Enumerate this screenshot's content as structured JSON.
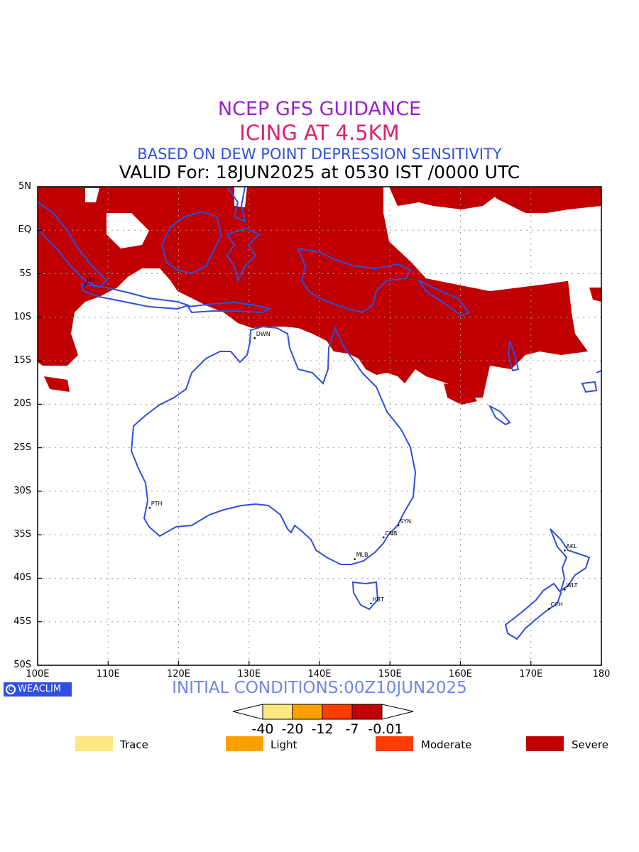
{
  "titles": {
    "line1": "NCEP GFS GUIDANCE",
    "line2": "ICING AT 4.5KM",
    "line3": "BASED ON DEW POINT DEPRESSION SENSITIVITY",
    "line4": "VALID For: 18JUN2025 at 0530 IST /0000 UTC"
  },
  "map": {
    "lat_labels": [
      "5N",
      "EQ",
      "5S",
      "10S",
      "15S",
      "20S",
      "25S",
      "30S",
      "35S",
      "40S",
      "45S",
      "50S"
    ],
    "lon_labels": [
      "100E",
      "110E",
      "120E",
      "130E",
      "140E",
      "150E",
      "160E",
      "170E",
      "180"
    ],
    "cities": [
      {
        "name": "JKT",
        "lon": 106.8,
        "lat": -6.2
      },
      {
        "name": "DWN",
        "lon": 130.8,
        "lat": -12.4
      },
      {
        "name": "PTH",
        "lon": 115.9,
        "lat": -31.9
      },
      {
        "name": "SYN",
        "lon": 151.2,
        "lat": -33.9
      },
      {
        "name": "CNB",
        "lon": 149.1,
        "lat": -35.3
      },
      {
        "name": "MLB",
        "lon": 145.0,
        "lat": -37.8
      },
      {
        "name": "HBT",
        "lon": 147.3,
        "lat": -42.9
      },
      {
        "name": "AKL",
        "lon": 174.8,
        "lat": -36.8
      },
      {
        "name": "WLT",
        "lon": 174.8,
        "lat": -41.3
      },
      {
        "name": "CCH",
        "lon": 172.6,
        "lat": -43.5
      }
    ],
    "colors": {
      "severe": "#c00000",
      "coast": "#2e4fe0"
    }
  },
  "footer": {
    "badge_text": "WEACLIM",
    "initial_conditions": "INITIAL CONDITIONS:00Z10JUN2025"
  },
  "colorbar": {
    "tick_labels": [
      "-40",
      "-20",
      "-12",
      "-7",
      "-0.01"
    ],
    "colors": [
      "#ffe680",
      "#ffa000",
      "#ff3c00",
      "#c00000"
    ]
  },
  "legend": [
    {
      "label": "Trace",
      "color": "#ffe680"
    },
    {
      "label": "Light",
      "color": "#ffa000"
    },
    {
      "label": "Moderate",
      "color": "#ff3c00"
    },
    {
      "label": "Severe",
      "color": "#c00000"
    }
  ]
}
